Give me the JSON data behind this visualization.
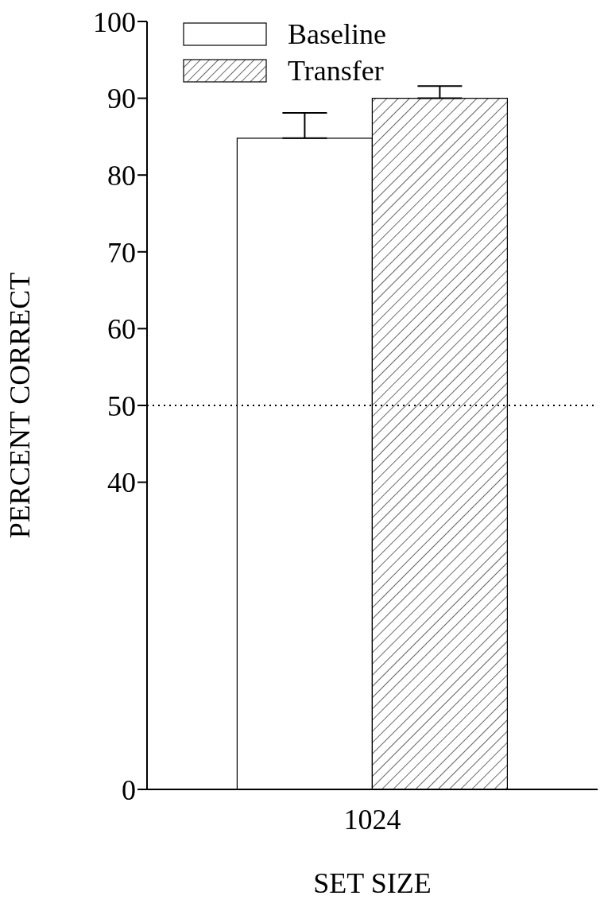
{
  "chart_data": {
    "type": "bar",
    "xlabel": "SET SIZE",
    "ylabel": "PERCENT CORRECT",
    "categories": [
      "1024"
    ],
    "series": [
      {
        "name": "Baseline",
        "color": "#ffffff",
        "values": [
          84.8
        ],
        "errors": [
          [
            84.8,
            88.1
          ]
        ]
      },
      {
        "name": "Transfer",
        "color": "#000000",
        "values": [
          90
        ],
        "errors": [
          [
            90,
            91.6
          ]
        ]
      }
    ],
    "ylim": [
      0,
      100
    ],
    "yticks": [
      0,
      40,
      50,
      60,
      70,
      80,
      90,
      100
    ],
    "ref_lines": [
      {
        "axis": "y",
        "value": 50,
        "line_style": "dotted",
        "color": "#000000"
      }
    ],
    "legend": "top left",
    "grid": false
  }
}
